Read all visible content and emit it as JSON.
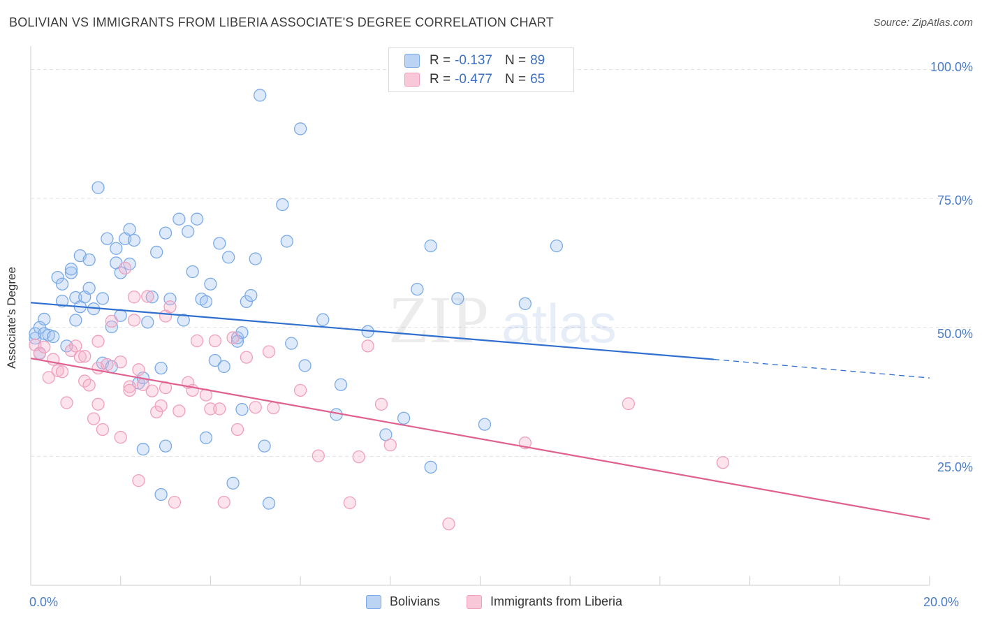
{
  "title": "BOLIVIAN VS IMMIGRANTS FROM LIBERIA ASSOCIATE'S DEGREE CORRELATION CHART",
  "source": "Source: ZipAtlas.com",
  "watermark": {
    "zip": "ZIP",
    "atlas": "atlas"
  },
  "legend_top": [
    {
      "r_label": "R =",
      "r_value": "-0.137",
      "n_label": "N =",
      "n_value": "89"
    },
    {
      "r_label": "R =",
      "r_value": "-0.477",
      "n_label": "N =",
      "n_value": "65"
    }
  ],
  "chart_data": {
    "type": "scatter",
    "xlabel": "",
    "ylabel": "Associate's Degree",
    "xlim": [
      0,
      20
    ],
    "ylim": [
      0,
      104
    ],
    "x_ticks": [
      "0.0%",
      "20.0%"
    ],
    "y_ticks": [
      "100.0%",
      "75.0%",
      "50.0%",
      "25.0%"
    ],
    "y_tick_values": [
      100,
      75,
      50,
      25
    ],
    "grid": "horizontal dashed",
    "series": [
      {
        "name": "Bolivians",
        "color": "#7aaae8",
        "fill": "rgba(160,196,240,0.35)",
        "line_color": "#2f6fcf",
        "trend": {
          "x0": 0,
          "y0": 54.8,
          "x1": 15.2,
          "y1": 43.8,
          "dash_to_x": 20,
          "dash_to_y": 40.2
        },
        "points": [
          [
            0.1,
            47.9
          ],
          [
            0.1,
            48.8
          ],
          [
            0.2,
            50.0
          ],
          [
            0.2,
            45.0
          ],
          [
            0.3,
            48.8
          ],
          [
            0.3,
            51.6
          ],
          [
            0.4,
            48.5
          ],
          [
            0.5,
            48.2
          ],
          [
            0.6,
            59.7
          ],
          [
            0.7,
            58.4
          ],
          [
            0.7,
            55.1
          ],
          [
            0.8,
            46.4
          ],
          [
            0.9,
            60.6
          ],
          [
            0.9,
            61.3
          ],
          [
            1.0,
            51.4
          ],
          [
            1.0,
            55.8
          ],
          [
            1.1,
            54.0
          ],
          [
            1.1,
            63.9
          ],
          [
            1.2,
            55.9
          ],
          [
            1.3,
            63.1
          ],
          [
            1.3,
            57.6
          ],
          [
            1.4,
            53.6
          ],
          [
            1.5,
            77.1
          ],
          [
            1.6,
            55.6
          ],
          [
            1.6,
            43.1
          ],
          [
            1.7,
            67.2
          ],
          [
            1.8,
            50.1
          ],
          [
            1.8,
            42.4
          ],
          [
            1.9,
            65.3
          ],
          [
            1.9,
            62.5
          ],
          [
            2.0,
            60.6
          ],
          [
            2.0,
            52.3
          ],
          [
            2.1,
            67.2
          ],
          [
            2.2,
            62.3
          ],
          [
            2.2,
            69.0
          ],
          [
            2.3,
            66.9
          ],
          [
            2.4,
            39.2
          ],
          [
            2.5,
            40.2
          ],
          [
            2.5,
            26.4
          ],
          [
            2.6,
            51.0
          ],
          [
            2.7,
            55.9
          ],
          [
            2.8,
            64.6
          ],
          [
            2.9,
            17.6
          ],
          [
            2.9,
            42.1
          ],
          [
            3.0,
            27.0
          ],
          [
            3.0,
            68.3
          ],
          [
            3.1,
            55.5
          ],
          [
            3.3,
            71.0
          ],
          [
            3.4,
            51.4
          ],
          [
            3.5,
            68.6
          ],
          [
            3.6,
            60.8
          ],
          [
            3.7,
            71.0
          ],
          [
            3.8,
            55.5
          ],
          [
            3.9,
            28.6
          ],
          [
            3.9,
            55.0
          ],
          [
            4.0,
            58.4
          ],
          [
            4.1,
            43.6
          ],
          [
            4.2,
            66.3
          ],
          [
            4.3,
            42.4
          ],
          [
            4.4,
            63.6
          ],
          [
            4.5,
            19.8
          ],
          [
            4.6,
            48.0
          ],
          [
            4.7,
            49.0
          ],
          [
            4.7,
            34.1
          ],
          [
            4.8,
            55.0
          ],
          [
            4.9,
            56.2
          ],
          [
            5.0,
            63.3
          ],
          [
            5.1,
            95.0
          ],
          [
            5.2,
            27.0
          ],
          [
            5.3,
            15.9
          ],
          [
            5.6,
            73.8
          ],
          [
            5.7,
            66.7
          ],
          [
            5.8,
            46.9
          ],
          [
            6.0,
            88.5
          ],
          [
            6.1,
            42.6
          ],
          [
            6.5,
            51.5
          ],
          [
            6.8,
            33.1
          ],
          [
            6.9,
            38.9
          ],
          [
            7.5,
            49.2
          ],
          [
            7.9,
            29.2
          ],
          [
            8.3,
            32.4
          ],
          [
            8.6,
            57.4
          ],
          [
            8.9,
            22.9
          ],
          [
            8.9,
            65.8
          ],
          [
            9.5,
            55.6
          ],
          [
            10.1,
            31.2
          ],
          [
            11.0,
            54.6
          ],
          [
            11.7,
            65.8
          ],
          [
            4.6,
            47.3
          ]
        ]
      },
      {
        "name": "Immigrants from Liberia",
        "color": "#f0a0bc",
        "fill": "rgba(245,176,200,0.35)",
        "line_color": "#e0608e",
        "trend": {
          "x0": 0,
          "y0": 44.0,
          "x1": 20,
          "y1": 12.8
        },
        "points": [
          [
            0.1,
            46.6
          ],
          [
            0.2,
            44.9
          ],
          [
            0.3,
            46.2
          ],
          [
            0.4,
            40.3
          ],
          [
            0.5,
            43.8
          ],
          [
            0.6,
            41.6
          ],
          [
            0.7,
            41.4
          ],
          [
            0.8,
            35.4
          ],
          [
            0.9,
            45.5
          ],
          [
            1.0,
            46.4
          ],
          [
            1.1,
            44.3
          ],
          [
            1.2,
            44.4
          ],
          [
            1.2,
            39.6
          ],
          [
            1.3,
            38.8
          ],
          [
            1.4,
            32.3
          ],
          [
            1.5,
            47.3
          ],
          [
            1.5,
            42.1
          ],
          [
            1.5,
            35.1
          ],
          [
            1.6,
            30.2
          ],
          [
            1.7,
            42.8
          ],
          [
            1.8,
            51.2
          ],
          [
            2.0,
            28.7
          ],
          [
            2.0,
            43.3
          ],
          [
            2.1,
            61.5
          ],
          [
            2.2,
            38.5
          ],
          [
            2.2,
            37.8
          ],
          [
            2.3,
            51.4
          ],
          [
            2.3,
            55.9
          ],
          [
            2.4,
            41.8
          ],
          [
            2.4,
            20.3
          ],
          [
            2.5,
            38.9
          ],
          [
            2.6,
            56.0
          ],
          [
            2.7,
            37.7
          ],
          [
            2.8,
            33.6
          ],
          [
            2.9,
            34.8
          ],
          [
            3.0,
            52.2
          ],
          [
            3.0,
            38.3
          ],
          [
            3.1,
            54.0
          ],
          [
            3.2,
            16.1
          ],
          [
            3.3,
            33.8
          ],
          [
            3.5,
            39.3
          ],
          [
            3.6,
            37.8
          ],
          [
            3.7,
            47.4
          ],
          [
            3.9,
            36.9
          ],
          [
            4.0,
            34.2
          ],
          [
            4.1,
            47.4
          ],
          [
            4.2,
            34.2
          ],
          [
            4.3,
            16.1
          ],
          [
            4.5,
            48.0
          ],
          [
            4.6,
            30.2
          ],
          [
            4.8,
            44.2
          ],
          [
            5.0,
            34.5
          ],
          [
            5.3,
            45.3
          ],
          [
            5.4,
            34.4
          ],
          [
            6.0,
            37.8
          ],
          [
            6.4,
            25.1
          ],
          [
            7.1,
            16.0
          ],
          [
            7.3,
            24.9
          ],
          [
            7.5,
            46.4
          ],
          [
            7.8,
            35.1
          ],
          [
            8.0,
            27.2
          ],
          [
            9.3,
            11.9
          ],
          [
            11.0,
            27.6
          ],
          [
            13.3,
            35.2
          ],
          [
            15.4,
            23.8
          ]
        ]
      }
    ]
  }
}
